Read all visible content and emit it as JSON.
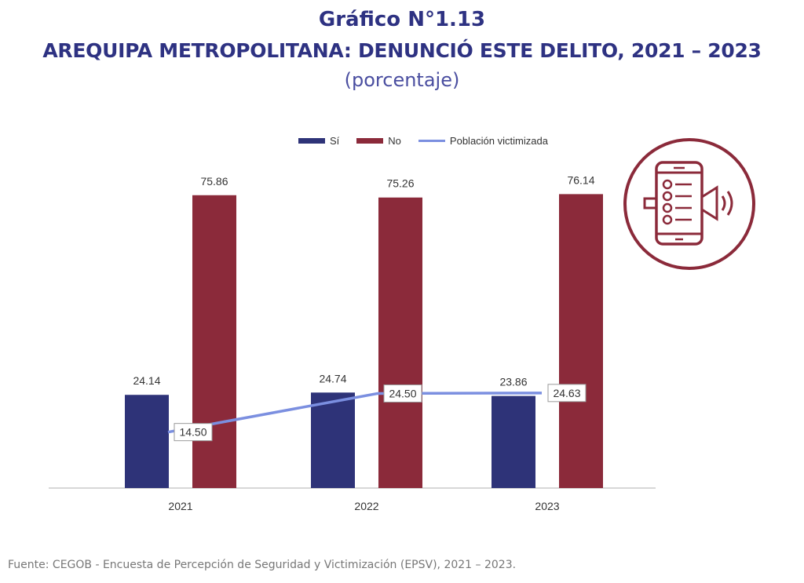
{
  "header": {
    "title": "Gráfico N°1.13",
    "subtitle": "AREQUIPA METROPOLITANA: DENUNCIÓ ESTE DELITO, 2021 – 2023",
    "unit": "(porcentaje)"
  },
  "legend": {
    "si": "Sí",
    "no": "No",
    "line": "Población victimizada"
  },
  "colors": {
    "si": "#2e3378",
    "no": "#8b2a3a",
    "line": "#7b8fe0",
    "title": "#2e3282",
    "icon": "#8b2a3a"
  },
  "chart_data": {
    "type": "bar",
    "categories": [
      "2021",
      "2022",
      "2023"
    ],
    "series": [
      {
        "name": "Sí",
        "values": [
          24.14,
          24.74,
          23.86
        ],
        "labels": [
          "24.14",
          "24.74",
          "23.86"
        ]
      },
      {
        "name": "No",
        "values": [
          75.86,
          75.26,
          76.14
        ],
        "labels": [
          "75.86",
          "75.26",
          "76.14"
        ]
      }
    ],
    "line_series": {
      "name": "Población victimizada",
      "values": [
        14.5,
        24.5,
        24.63
      ],
      "labels": [
        "14.50",
        "24.50",
        "24.63"
      ]
    },
    "ylim": [
      0,
      100
    ],
    "grid": false,
    "legend_position": "top"
  },
  "source": "Fuente: CEGOB - Encuesta de Percepción de Seguridad y Victimización (EPSV), 2021 – 2023."
}
